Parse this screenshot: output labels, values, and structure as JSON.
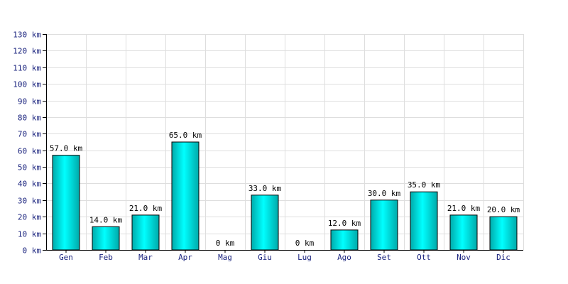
{
  "chart_data": {
    "type": "bar",
    "categories": [
      "Gen",
      "Feb",
      "Mar",
      "Apr",
      "Mag",
      "Giu",
      "Lug",
      "Ago",
      "Set",
      "Ott",
      "Nov",
      "Dic"
    ],
    "values": [
      57.0,
      14.0,
      21.0,
      65.0,
      0,
      33.0,
      0,
      12.0,
      30.0,
      35.0,
      21.0,
      20.0
    ],
    "data_labels": [
      "57.0 km",
      "14.0 km",
      "21.0 km",
      "65.0 km",
      "0 km",
      "33.0 km",
      "0 km",
      "12.0 km",
      "30.0 km",
      "35.0 km",
      "21.0 km",
      "20.0 km"
    ],
    "y_ticks": [
      "0 km",
      "10 km",
      "20 km",
      "30 km",
      "40 km",
      "50 km",
      "60 km",
      "70 km",
      "80 km",
      "90 km",
      "100 km",
      "110 km",
      "120 km",
      "130 km"
    ],
    "title": "",
    "xlabel": "",
    "ylabel": "",
    "ylim": [
      0,
      130
    ],
    "grid": true,
    "legend": "none",
    "colors": {
      "bar_light": "#00ffff",
      "bar_dark": "#00aaaa",
      "grid": "#dedede",
      "tick_text": "#1a237e",
      "axis": "#000000"
    }
  }
}
